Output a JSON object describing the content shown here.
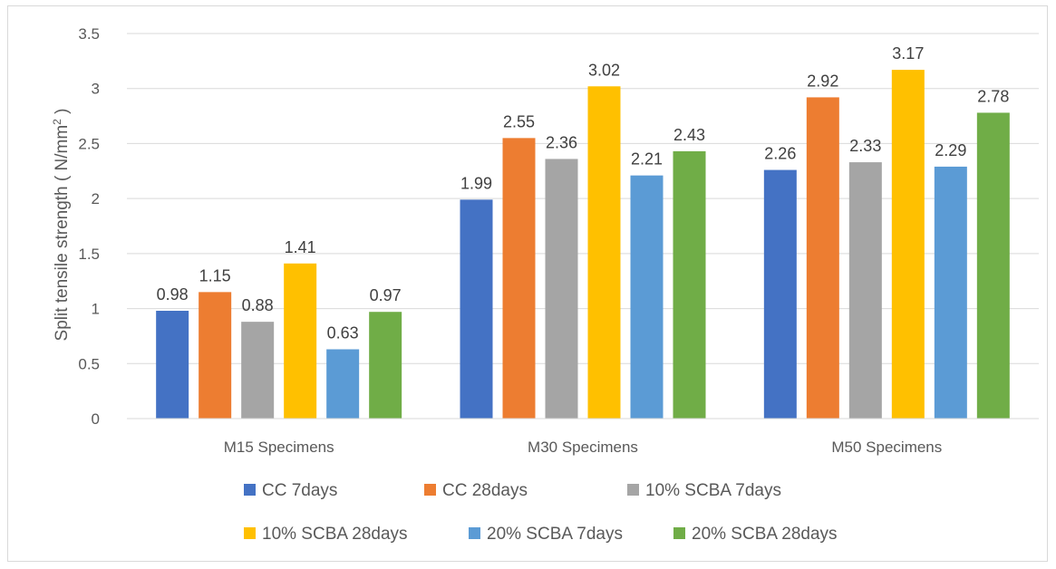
{
  "chart_data": {
    "type": "bar",
    "categories": [
      "M15 Specimens",
      "M30 Specimens",
      "M50 Specimens"
    ],
    "series": [
      {
        "name": "CC 7days",
        "color": "#4472c4",
        "values": [
          0.98,
          1.99,
          2.26
        ]
      },
      {
        "name": "CC 28days",
        "color": "#ed7d31",
        "values": [
          1.15,
          2.55,
          2.92
        ]
      },
      {
        "name": "10% SCBA 7days",
        "color": "#a5a5a5",
        "values": [
          0.88,
          2.36,
          2.33
        ]
      },
      {
        "name": "10% SCBA 28days",
        "color": "#ffc000",
        "values": [
          1.41,
          3.02,
          3.17
        ]
      },
      {
        "name": "20% SCBA 7days",
        "color": "#5b9bd5",
        "values": [
          0.63,
          2.21,
          2.29
        ]
      },
      {
        "name": "20% SCBA 28days",
        "color": "#70ad47",
        "values": [
          0.97,
          2.43,
          2.78
        ]
      }
    ],
    "data_labels": [
      [
        "0.98",
        "1.99",
        "2.26"
      ],
      [
        "1.15",
        "2.55",
        "2.92"
      ],
      [
        "0.88",
        "2.36",
        "2.33"
      ],
      [
        "1.41",
        "3.02",
        "3.17"
      ],
      [
        "0.63",
        "2.21",
        "2.29"
      ],
      [
        "0.97",
        "2.43",
        "2.78"
      ]
    ],
    "ylabel_parts": [
      "Split tensile strength ( N/mm",
      "2",
      " )"
    ],
    "xlabel": "",
    "ylim": [
      0,
      3.5
    ],
    "yticks": [
      "0",
      "0.5",
      "1",
      "1.5",
      "2",
      "2.5",
      "3",
      "3.5"
    ],
    "grid": true,
    "legend_position": "bottom",
    "gridline_color": "#d9d9d9"
  }
}
